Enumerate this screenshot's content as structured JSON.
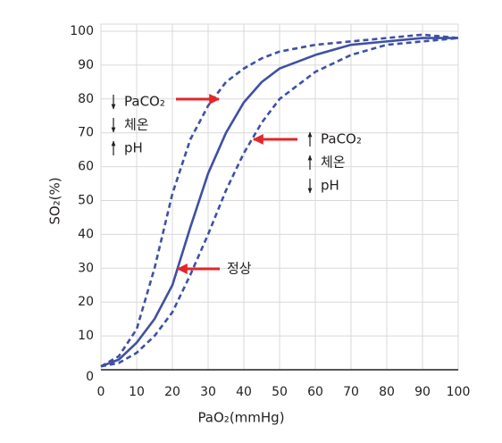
{
  "chart_data": {
    "type": "line",
    "xlabel": "PaO₂(mmHg)",
    "ylabel": "SO₂(%)",
    "x": [
      0,
      5,
      10,
      15,
      20,
      25,
      30,
      35,
      40,
      45,
      50,
      60,
      70,
      80,
      90,
      100
    ],
    "series": [
      {
        "style": "solid",
        "color": "#3f51a3",
        "values": [
          1,
          3,
          8,
          15,
          25,
          42,
          58,
          70,
          79,
          85,
          89,
          93,
          96,
          97,
          98,
          98
        ]
      },
      {
        "style": "dashed",
        "color": "#3f51a3",
        "values": [
          1,
          4,
          12,
          30,
          52,
          68,
          78,
          85,
          89,
          92,
          94,
          96,
          97,
          98,
          99,
          98
        ]
      },
      {
        "style": "dashed",
        "color": "#3f51a3",
        "values": [
          1,
          2,
          5,
          10,
          17,
          28,
          40,
          53,
          64,
          73,
          80,
          88,
          93,
          96,
          97,
          98
        ]
      }
    ],
    "xlim": [
      0,
      100
    ],
    "xticks": [
      0,
      10,
      20,
      30,
      40,
      50,
      60,
      70,
      80,
      90,
      100
    ],
    "ylim": [
      0,
      100
    ],
    "yticks": [
      0,
      10,
      20,
      30,
      40,
      50,
      60,
      70,
      80,
      90,
      100
    ],
    "grid": true,
    "annotations": {
      "left_shift": [
        "PaCO₂",
        "체온",
        "pH"
      ],
      "right_shift": [
        "PaCO₂",
        "체온",
        "pH"
      ],
      "normal": "정상"
    }
  }
}
